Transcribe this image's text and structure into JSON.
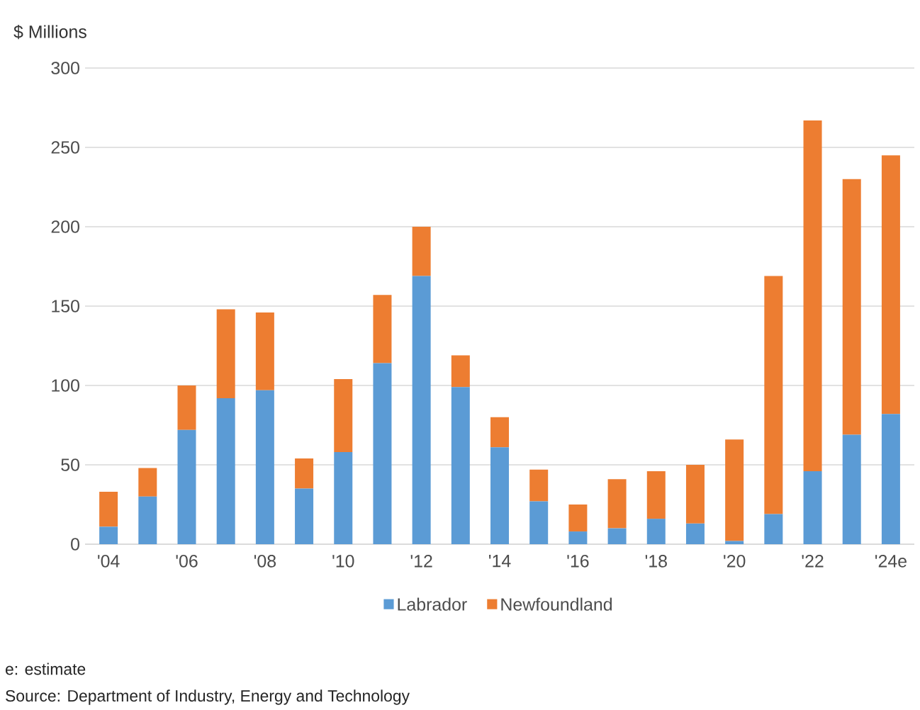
{
  "chart_data": {
    "type": "bar",
    "stacked": true,
    "ylabel": "$ Millions",
    "categories": [
      "'04",
      null,
      "'06",
      null,
      "'08",
      null,
      "'10",
      null,
      "'12",
      null,
      "'14",
      null,
      "'16",
      null,
      "'18",
      null,
      "'20",
      null,
      "'22",
      null,
      "'24e"
    ],
    "series": [
      {
        "name": "Labrador",
        "color": "#5b9bd5",
        "values": [
          11,
          30,
          72,
          92,
          97,
          35,
          58,
          114,
          169,
          99,
          61,
          27,
          8,
          10,
          16,
          13,
          2,
          19,
          46,
          69,
          82
        ]
      },
      {
        "name": "Newfoundland",
        "color": "#ed7d31",
        "values": [
          22,
          18,
          28,
          56,
          49,
          19,
          46,
          43,
          31,
          20,
          19,
          20,
          17,
          31,
          30,
          37,
          64,
          150,
          221,
          161,
          163
        ]
      }
    ],
    "ylim": [
      0,
      300
    ],
    "yticks": [
      0,
      50,
      100,
      150,
      200,
      250,
      300
    ],
    "grid": "y",
    "legend": "bottom",
    "annotations": [
      "e: estimate",
      "Source: Department of Industry, Energy and Technology"
    ]
  }
}
